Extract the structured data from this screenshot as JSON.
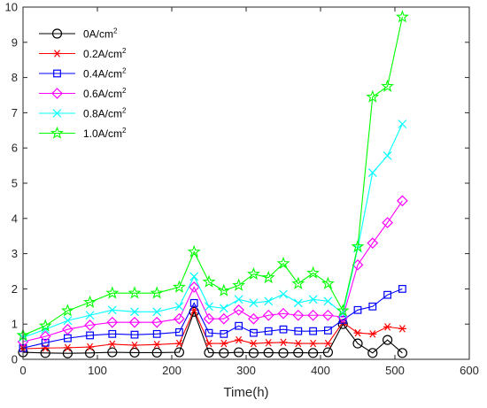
{
  "chart_data": {
    "type": "line",
    "xlabel": "Time(h)",
    "ylabel": "",
    "xlim": [
      0,
      600
    ],
    "ylim": [
      0,
      10
    ],
    "xticks": [
      0,
      100,
      200,
      300,
      400,
      500,
      600
    ],
    "yticks": [
      0,
      1,
      2,
      3,
      4,
      5,
      6,
      7,
      8,
      9,
      10
    ],
    "grid": false,
    "legend_position": "top-left",
    "x": [
      0,
      30,
      60,
      90,
      120,
      150,
      180,
      210,
      230,
      250,
      270,
      290,
      310,
      330,
      350,
      370,
      390,
      410,
      430,
      450,
      470,
      490,
      510
    ],
    "series": [
      {
        "name": "0A/cm",
        "name_sup": "2",
        "color": "#000000",
        "marker": "circle",
        "values": [
          0.2,
          0.18,
          0.17,
          0.18,
          0.2,
          0.19,
          0.19,
          0.2,
          1.35,
          0.19,
          0.18,
          0.2,
          0.18,
          0.19,
          0.18,
          0.19,
          0.18,
          0.2,
          1.0,
          0.45,
          0.18,
          0.55,
          0.18
        ]
      },
      {
        "name": "0.2A/cm",
        "name_sup": "2",
        "color": "#ff0000",
        "marker": "asterisk",
        "values": [
          0.3,
          0.32,
          0.33,
          0.35,
          0.43,
          0.4,
          0.42,
          0.45,
          1.4,
          0.45,
          0.45,
          0.55,
          0.45,
          0.47,
          0.48,
          0.45,
          0.45,
          0.45,
          1.05,
          0.75,
          0.72,
          0.92,
          0.87
        ]
      },
      {
        "name": "0.4A/cm",
        "name_sup": "2",
        "color": "#0000ff",
        "marker": "square",
        "values": [
          0.32,
          0.47,
          0.6,
          0.68,
          0.72,
          0.7,
          0.72,
          0.77,
          1.6,
          0.75,
          0.72,
          0.95,
          0.75,
          0.8,
          0.85,
          0.8,
          0.8,
          0.82,
          1.12,
          1.4,
          1.5,
          1.83,
          2.0
        ]
      },
      {
        "name": "0.6A/cm",
        "name_sup": "2",
        "color": "#ff00ff",
        "marker": "diamond",
        "values": [
          0.5,
          0.65,
          0.85,
          0.97,
          1.05,
          1.05,
          1.05,
          1.15,
          2.05,
          1.15,
          1.15,
          1.4,
          1.15,
          1.25,
          1.3,
          1.25,
          1.25,
          1.25,
          1.2,
          2.68,
          3.3,
          3.88,
          4.5
        ]
      },
      {
        "name": "0.8A/cm",
        "name_sup": "2",
        "color": "#00ffff",
        "marker": "x",
        "values": [
          0.62,
          0.85,
          1.1,
          1.25,
          1.4,
          1.35,
          1.35,
          1.5,
          2.35,
          1.5,
          1.45,
          1.7,
          1.6,
          1.65,
          1.85,
          1.6,
          1.7,
          1.65,
          1.3,
          3.15,
          5.3,
          5.78,
          6.68
        ]
      },
      {
        "name": "1.0A/cm",
        "name_sup": "2",
        "color": "#00ff00",
        "marker": "pentagram",
        "values": [
          0.68,
          0.95,
          1.38,
          1.62,
          1.88,
          1.88,
          1.88,
          2.05,
          3.05,
          2.2,
          1.95,
          2.1,
          2.42,
          2.32,
          2.72,
          2.15,
          2.45,
          2.15,
          1.38,
          3.2,
          7.45,
          7.75,
          9.72
        ]
      }
    ]
  }
}
